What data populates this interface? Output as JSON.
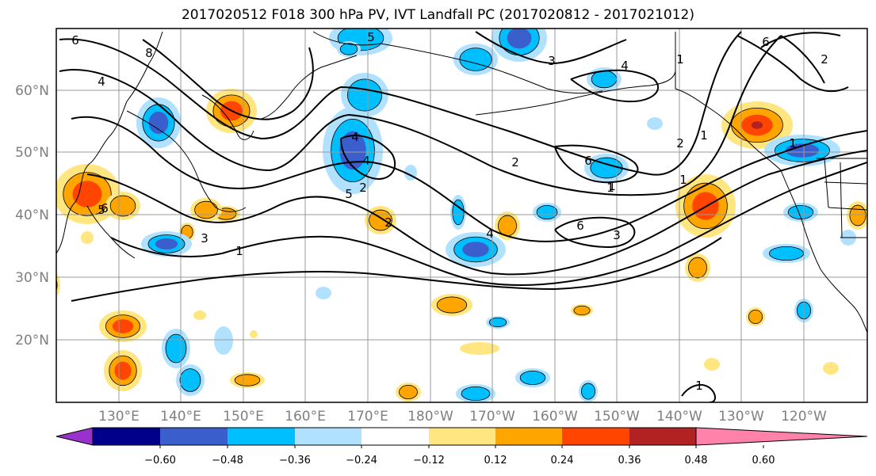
{
  "title": "2017020512 F018 300 hPa PV, IVT Landfall PC (2017020812 - 2017021012)",
  "map": {
    "lat_labels": [
      "60°N",
      "50°N",
      "40°N",
      "30°N",
      "20°N"
    ],
    "lon_labels": [
      "130°E",
      "140°E",
      "150°E",
      "160°E",
      "170°E",
      "180°W",
      "170°W",
      "160°W",
      "150°W",
      "140°W",
      "130°W",
      "120°W"
    ],
    "contour_labels": [
      "6",
      "8",
      "4",
      "2",
      "1",
      "6",
      "4",
      "5",
      "1",
      "6",
      "2",
      "1",
      "2",
      "1",
      "2",
      "3",
      "5",
      "4",
      "6",
      "1",
      "4",
      "6",
      "5",
      "3",
      "4",
      "1",
      "1",
      "3",
      "2",
      "1"
    ]
  },
  "colorbar": {
    "ticks": [
      "−0.60",
      "−0.48",
      "−0.36",
      "−0.24",
      "−0.12",
      "0.12",
      "0.24",
      "0.36",
      "0.48",
      "0.60"
    ],
    "colors": [
      "#9932cc",
      "#00008b",
      "#3a5fcd",
      "#00bfff",
      "#b0e2ff",
      "#ffffff",
      "#ffe680",
      "#ffa500",
      "#ff4500",
      "#b22222",
      "#ff82ab"
    ]
  },
  "fill_colors": {
    "neg_light": "#b0e2ff",
    "neg_mid": "#00bfff",
    "neg_strong": "#3a5fcd",
    "pos_light": "#ffe680",
    "pos_mid": "#ffa500",
    "pos_strong": "#ff4500",
    "pos_max": "#b22222"
  }
}
